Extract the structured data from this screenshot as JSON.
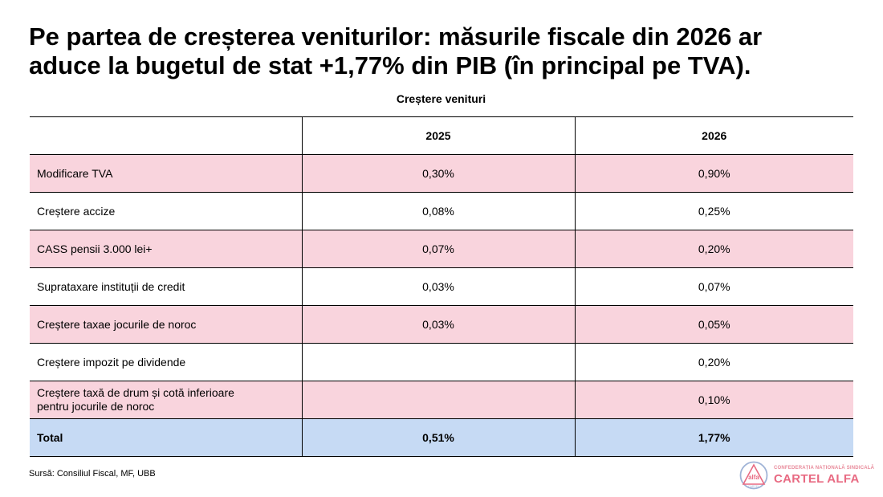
{
  "title": {
    "line1": "Pe partea de creșterea veniturilor: măsurile fiscale din 2026 ar",
    "line2": "aduce la bugetul de stat +1,77% din PIB (în principal pe TVA)."
  },
  "table": {
    "caption": "Creștere venituri",
    "headers": [
      "",
      "2025",
      "2026"
    ],
    "rows": [
      {
        "label": "Modificare TVA",
        "y2025": "0,30%",
        "y2026": "0,90%"
      },
      {
        "label": "Creștere accize",
        "y2025": "0,08%",
        "y2026": "0,25%"
      },
      {
        "label": "CASS pensii 3.000 lei+",
        "y2025": "0,07%",
        "y2026": "0,20%"
      },
      {
        "label": "Suprataxare instituții de credit",
        "y2025": "0,03%",
        "y2026": "0,07%"
      },
      {
        "label": "Creștere taxae jocurile de noroc",
        "y2025": "0,03%",
        "y2026": "0,05%"
      },
      {
        "label": "Creștere impozit pe dividende",
        "y2025": "",
        "y2026": "0,20%"
      },
      {
        "label_line1": "Creștere taxă de drum și cotă inferioare",
        "label_line2": "pentru jocurile de noroc",
        "y2025": "",
        "y2026": "0,10%"
      }
    ],
    "total": {
      "label": "Total",
      "y2025": "0,51%",
      "y2026": "1,77%"
    }
  },
  "source": {
    "label": "Sursă:",
    "text": "Consiliul Fiscal, MF, UBB"
  },
  "logo": {
    "emblem_text": "alfa",
    "emblem_subtext": "CARTEL",
    "small_text": "CONFEDERAȚIA NAȚIONALĂ SINDICALĂ",
    "big_text": "CARTEL ALFA"
  },
  "colors": {
    "pink_row": "#f9d4dd",
    "total_row": "#c6daf4",
    "logo_accent": "#e86a82"
  }
}
